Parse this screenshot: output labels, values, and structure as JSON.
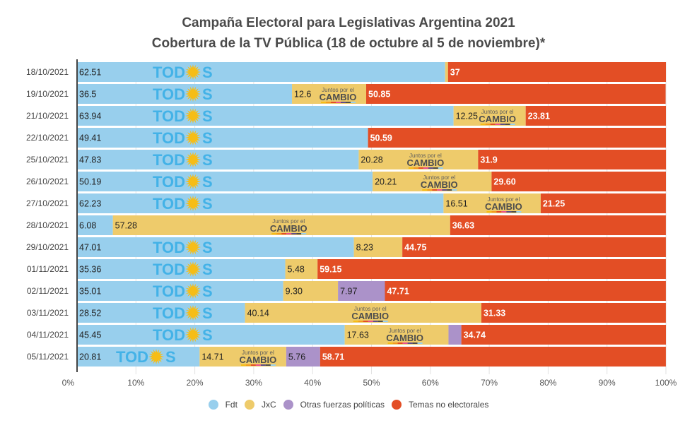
{
  "chart_data": {
    "type": "bar",
    "orientation": "horizontal",
    "stacked": "percent",
    "title": "Campaña Electoral para Legislativas Argentina 2021",
    "subtitle": "Cobertura de la TV Pública (18 de octubre al 5 de noviembre)*",
    "xlabel": "",
    "ylabel": "",
    "xlim": [
      0,
      100
    ],
    "x_ticks": [
      "0%",
      "10%",
      "20%",
      "30%",
      "40%",
      "50%",
      "60%",
      "70%",
      "80%",
      "90%",
      "100%"
    ],
    "grid": true,
    "legend_position": "bottom",
    "categories": [
      "18/10/2021",
      "19/10/2021",
      "21/10/2021",
      "22/10/2021",
      "25/10/2021",
      "26/10/2021",
      "27/10/2021",
      "28/10/2021",
      "29/10/2021",
      "01/11/2021",
      "02/11/2021",
      "03/11/2021",
      "04/11/2021",
      "05/11/2021"
    ],
    "series": [
      {
        "name": "Fdt",
        "color": "#98cfed",
        "logo": "TODOS",
        "values": [
          62.51,
          36.5,
          63.94,
          49.41,
          47.83,
          50.19,
          62.23,
          6.08,
          47.01,
          35.36,
          35.01,
          28.52,
          45.45,
          20.81
        ],
        "labels": [
          "62.51",
          "36.5",
          "63.94",
          "49.41",
          "47.83",
          "50.19",
          "62.23",
          "6.08",
          "47.01",
          "35.36",
          "35.01",
          "28.52",
          "45.45",
          "20.81"
        ]
      },
      {
        "name": "JxC",
        "color": "#eecb6b",
        "logo_top": "Juntos por el",
        "logo_bottom": "CAMBIO",
        "values": [
          0.49,
          12.6,
          12.25,
          0,
          20.28,
          20.21,
          16.51,
          57.28,
          8.23,
          5.48,
          9.3,
          40.14,
          17.63,
          14.71
        ],
        "labels": [
          "",
          "12.6",
          "12.25",
          "",
          "20.28",
          "20.21",
          "16.51",
          "57.28",
          "8.23",
          "5.48",
          "9.30",
          "40.14",
          "17.63",
          "14.71"
        ]
      },
      {
        "name": "Otras fuerzas políticas",
        "color": "#ab92c9",
        "values": [
          0,
          0,
          0,
          0,
          0,
          0,
          0,
          0,
          0,
          0,
          7.97,
          0,
          2.18,
          5.76
        ],
        "labels": [
          "",
          "",
          "",
          "",
          "",
          "",
          "",
          "",
          "",
          "",
          "7.97",
          "",
          "",
          "5.76"
        ]
      },
      {
        "name": "Temas no electorales",
        "color": "#e34e25",
        "values": [
          37,
          50.85,
          23.81,
          50.59,
          31.9,
          29.6,
          21.25,
          36.63,
          44.75,
          59.15,
          47.71,
          31.33,
          34.74,
          58.71
        ],
        "labels": [
          "37",
          "50.85",
          "23.81",
          "50.59",
          "31.9",
          "29.60",
          "21.25",
          "36.63",
          "44.75",
          "59.15",
          "47.71",
          "31.33",
          "34.74",
          "58.71"
        ]
      }
    ]
  }
}
